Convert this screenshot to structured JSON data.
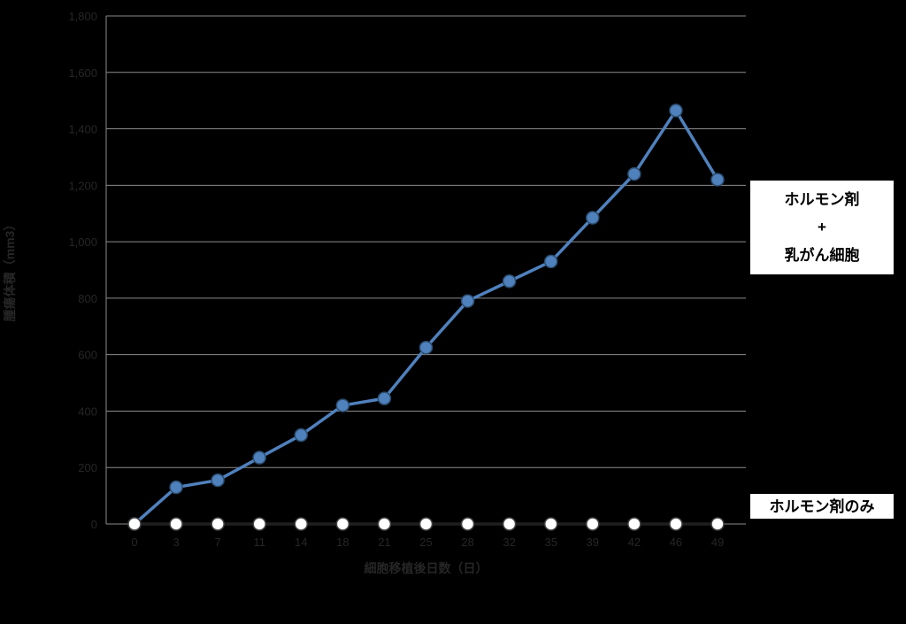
{
  "chart_data": {
    "type": "line",
    "title": "",
    "xlabel": "細胞移植後日数（日）",
    "ylabel": "腫瘍体積（mm3）",
    "x_categories": [
      "0",
      "3",
      "7",
      "11",
      "14",
      "18",
      "21",
      "25",
      "28",
      "32",
      "35",
      "39",
      "42",
      "46",
      "49"
    ],
    "ylim": [
      0,
      1800
    ],
    "ytick_step": 200,
    "ytick_labels": [
      "0",
      "200",
      "400",
      "600",
      "800",
      "1,000",
      "1,200",
      "1,400",
      "1,600",
      "1,800"
    ],
    "grid": true,
    "legend_position": "right-annotation-boxes",
    "series": [
      {
        "name": "ホルモン剤＋乳がん細胞",
        "values": [
          0,
          130,
          155,
          235,
          315,
          420,
          445,
          625,
          790,
          860,
          930,
          1085,
          1240,
          1465,
          1220
        ],
        "color": "#4F81BD",
        "marker": "circle",
        "marker_fill": "#4F81BD",
        "marker_stroke": "#2c4d6e"
      },
      {
        "name": "ホルモン剤のみ",
        "values": [
          0,
          0,
          0,
          0,
          0,
          0,
          0,
          0,
          0,
          0,
          0,
          0,
          0,
          0,
          0
        ],
        "color": "#1f1f1f",
        "marker": "circle",
        "marker_fill": "#ffffff",
        "marker_stroke": "#3f3f3f"
      }
    ]
  },
  "annotations": {
    "treated_line1": "ホルモン剤",
    "treated_line2": "+",
    "treated_line3": "乳がん細胞",
    "control": "ホルモン剤のみ"
  },
  "colors": {
    "background": "#000000",
    "gridline": "#8c8c8c",
    "axis_text": "#262626",
    "box_bg": "#ffffff",
    "box_border": "#000000",
    "series_blue": "#4F81BD"
  }
}
